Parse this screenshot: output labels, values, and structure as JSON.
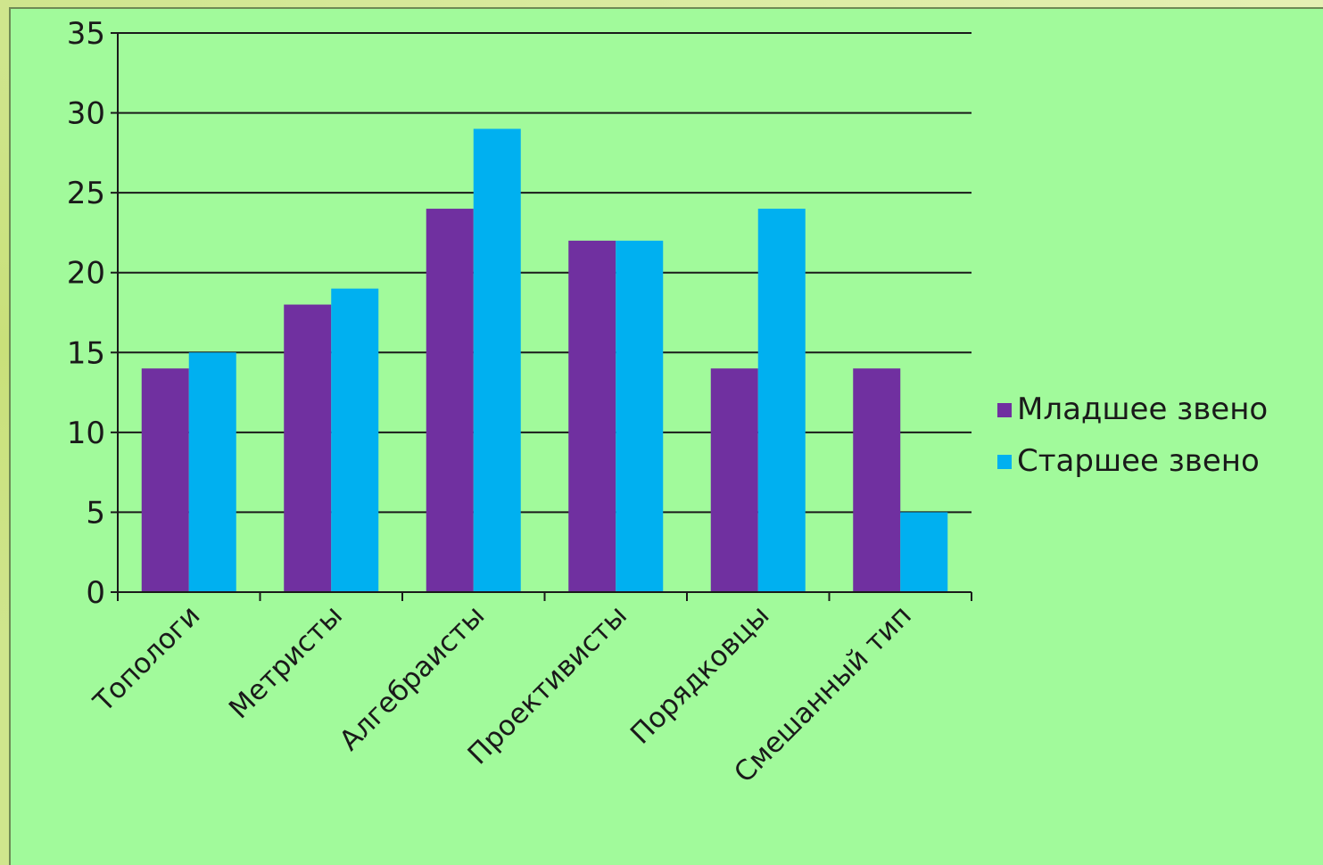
{
  "chart_data": {
    "type": "bar",
    "categories": [
      "Топологи",
      "Метристы",
      "Алгебраисты",
      "Проективисты",
      "Порядковцы",
      "Смешанный тип"
    ],
    "series": [
      {
        "name": "Младшее звено",
        "values": [
          14,
          18,
          24,
          22,
          14,
          14
        ],
        "color": "#7030a0"
      },
      {
        "name": "Старшее звено",
        "values": [
          15,
          19,
          29,
          22,
          24,
          5
        ],
        "color": "#00b0f0"
      }
    ],
    "y_ticks": [
      "0",
      "5",
      "10",
      "15",
      "20",
      "25",
      "30",
      "35"
    ],
    "ylim": [
      0,
      35
    ],
    "grid": true,
    "legend": "right",
    "background_color": "#a1fa9b",
    "gridline_color": "#1a1a1a"
  }
}
